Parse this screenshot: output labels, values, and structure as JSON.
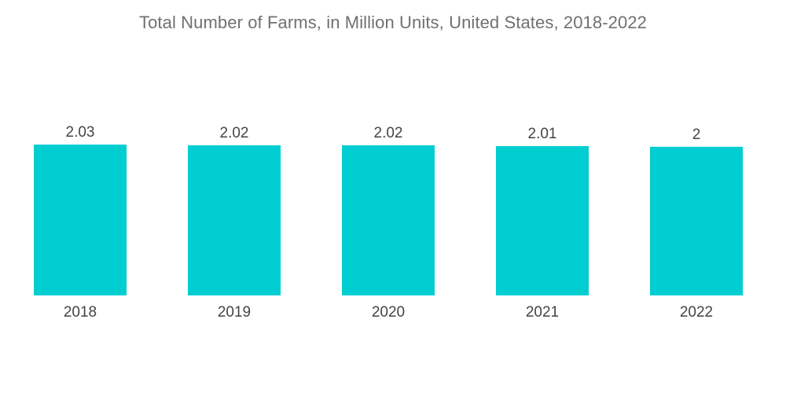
{
  "chart_data": {
    "type": "bar",
    "title": "Total Number of Farms, in Million Units, United States, 2018-2022",
    "categories": [
      "2018",
      "2019",
      "2020",
      "2021",
      "2022"
    ],
    "values": [
      2.03,
      2.02,
      2.02,
      2.01,
      2
    ],
    "value_labels": [
      "2.03",
      "2.02",
      "2.02",
      "2.01",
      "2"
    ],
    "xlabel": "",
    "ylabel": "",
    "grid": false,
    "legend": "none",
    "bar_color": "#00ced1"
  }
}
